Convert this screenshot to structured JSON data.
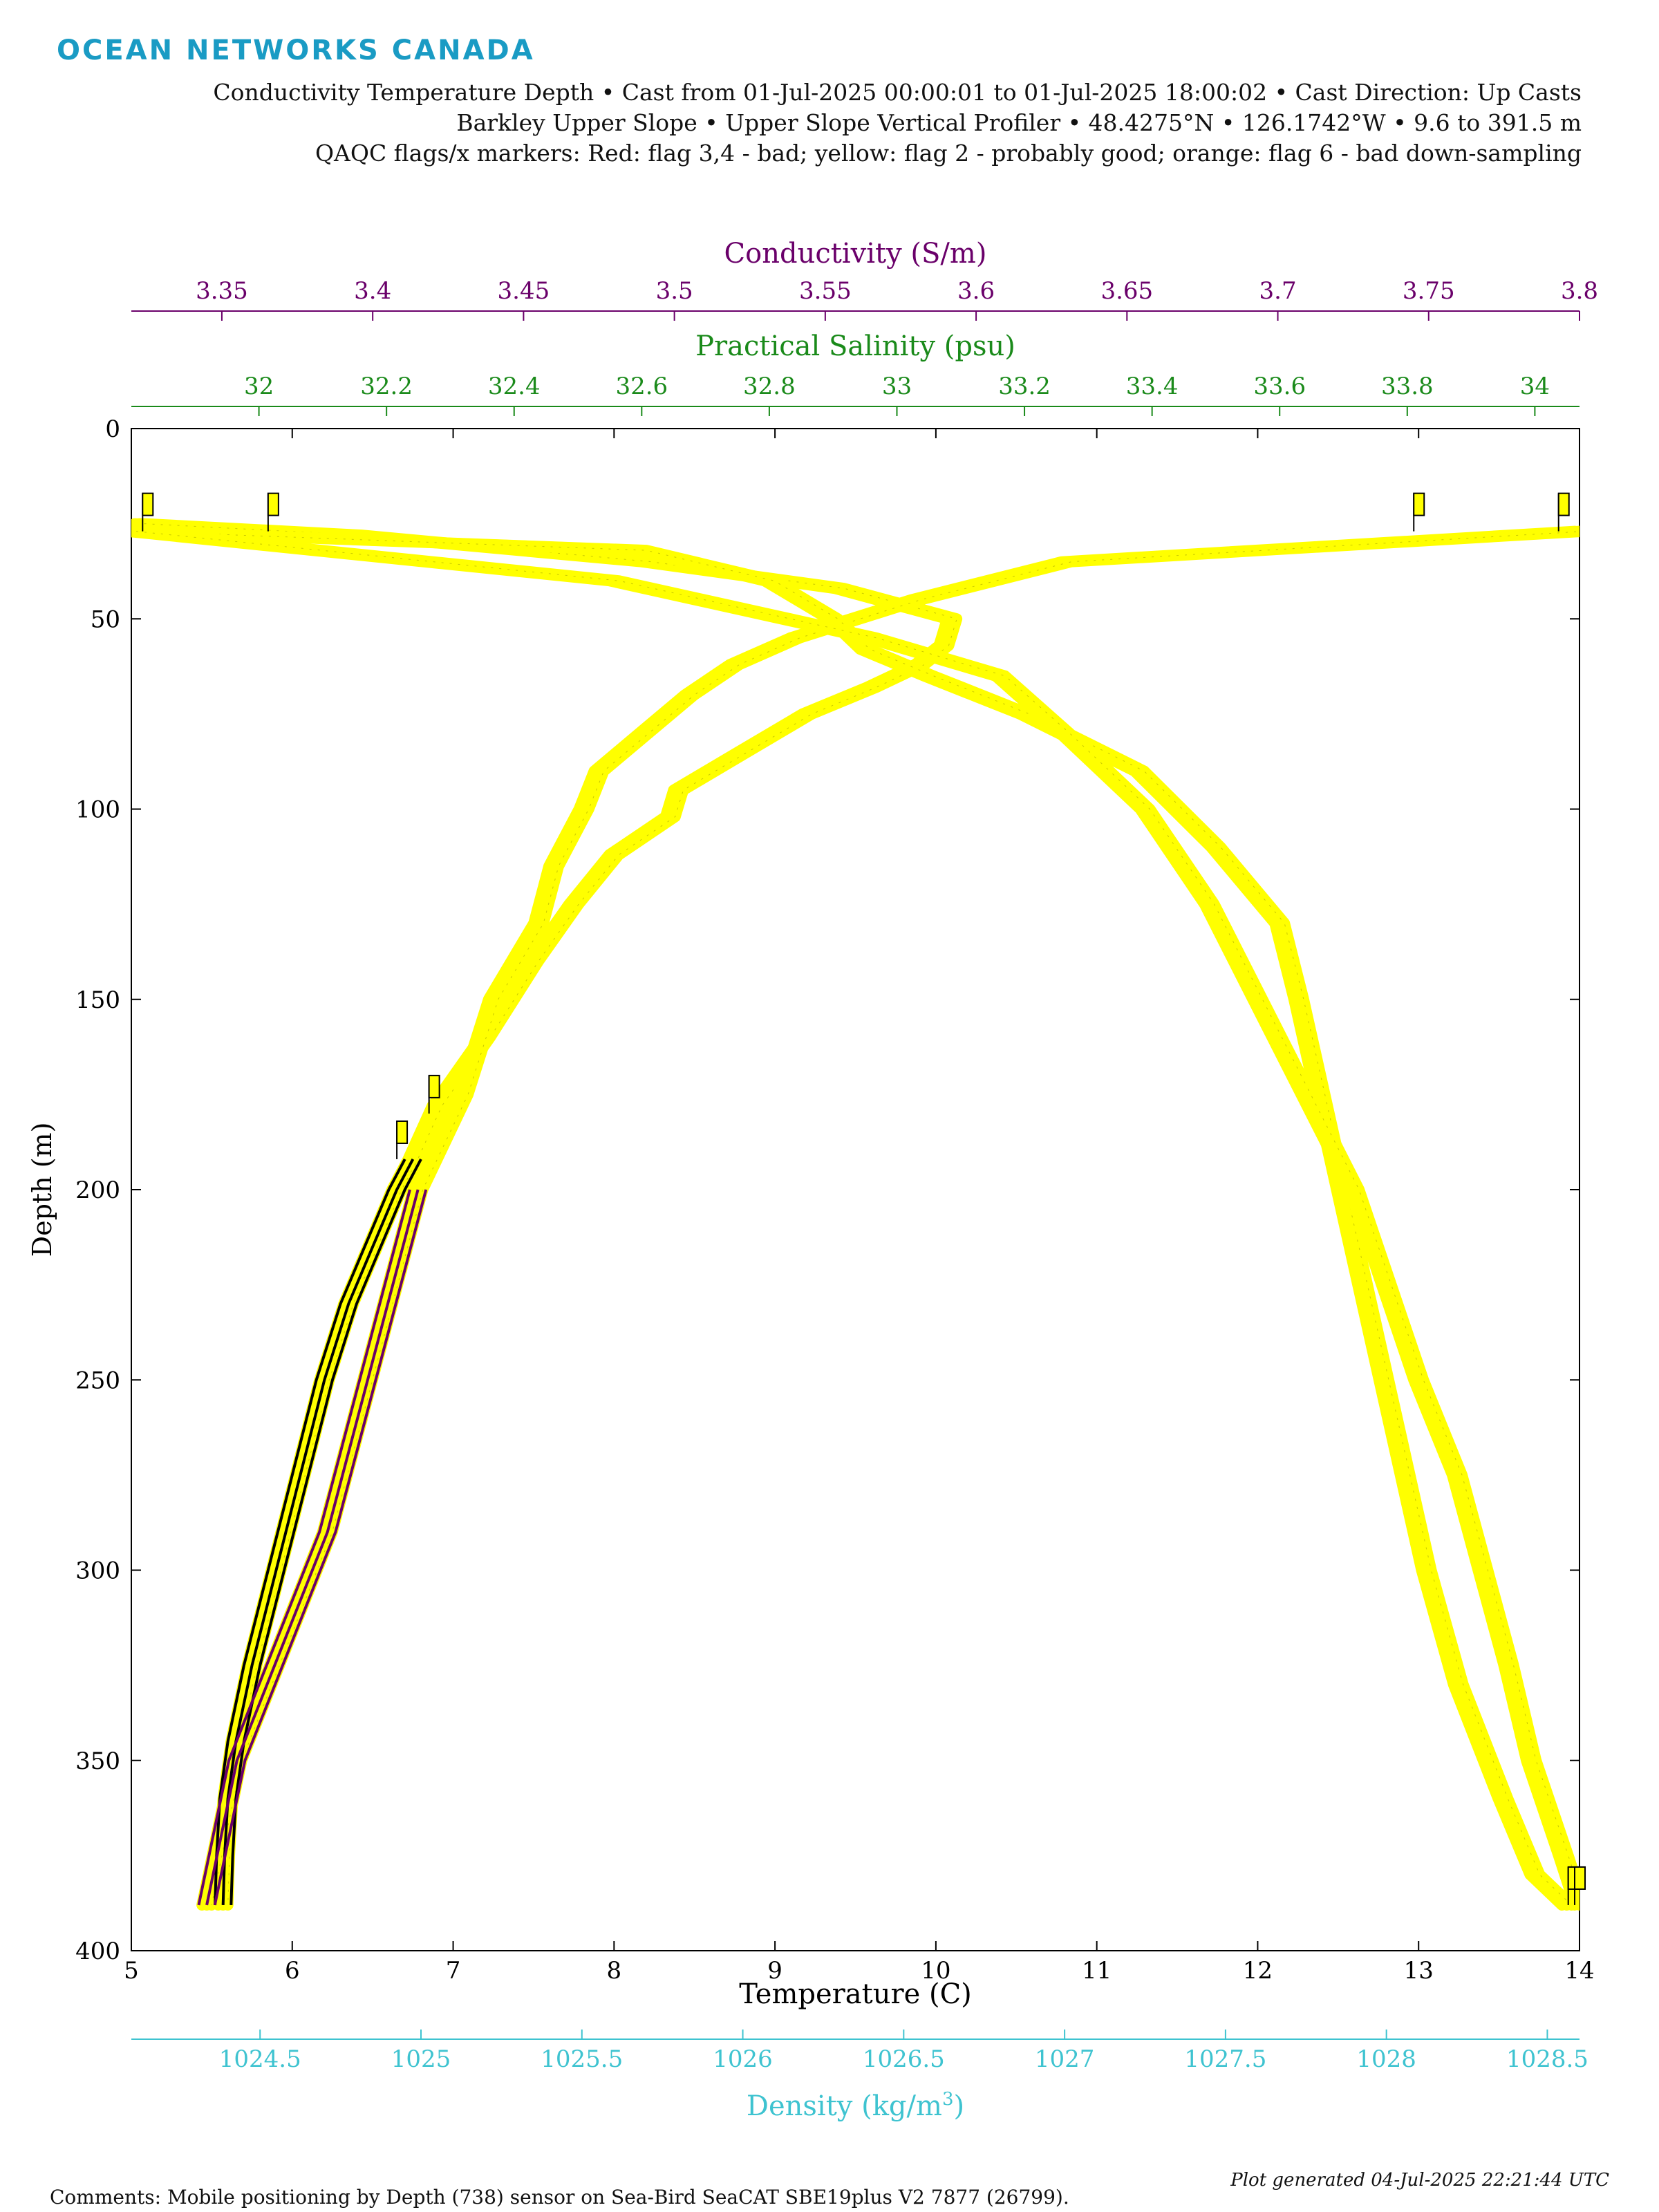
{
  "header": {
    "brand": "OCEAN NETWORKS CANADA",
    "line1": "Conductivity Temperature Depth • Cast from 01-Jul-2025 00:00:01 to 01-Jul-2025 18:00:02 • Cast Direction: Up Casts",
    "line2": "Barkley Upper Slope • Upper Slope Vertical Profiler • 48.4275°N • 126.1742°W • 9.6 to 391.5 m",
    "line3": "QAQC flags/x markers: Red: flag 3,4 - bad; yellow: flag 2 - probably good; orange: flag 6 - bad down-sampling"
  },
  "footer": {
    "comments": "Comments: Mobile positioning by Depth (738) sensor on Sea-Bird SeaCAT SBE19plus V2 7877 (26799).",
    "generated": "Plot generated 04-Jul-2025 22:21:44 UTC"
  },
  "colors": {
    "conductivity": "#6a006a",
    "salinity": "#1a8a1a",
    "density": "#3ec3d0",
    "temperature": "#000000",
    "flag_yellow": "#ffff00"
  },
  "chart_data": {
    "type": "line",
    "y_axis": {
      "label": "Depth (m)",
      "range": [
        0,
        400
      ],
      "reversed": true,
      "ticks": [
        "0",
        "50",
        "100",
        "150",
        "200",
        "250",
        "300",
        "350",
        "400"
      ]
    },
    "axes": {
      "temperature": {
        "label": "Temperature (C)",
        "range": [
          5,
          14
        ],
        "ticks": [
          "5",
          "6",
          "7",
          "8",
          "9",
          "10",
          "11",
          "12",
          "13",
          "14"
        ]
      },
      "conductivity": {
        "label": "Conductivity (S/m)",
        "range": [
          3.32,
          3.8
        ],
        "ticks": [
          "3.35",
          "3.4",
          "3.45",
          "3.5",
          "3.55",
          "3.6",
          "3.65",
          "3.7",
          "3.75",
          "3.8"
        ]
      },
      "salinity": {
        "label": "Practical Salinity (psu)",
        "range": [
          31.8,
          34.07
        ],
        "ticks": [
          "32",
          "32.2",
          "32.4",
          "32.6",
          "32.8",
          "33",
          "33.2",
          "33.4",
          "33.6",
          "33.8",
          "34"
        ]
      },
      "density": {
        "label": "Density (kg/m3)",
        "range": [
          1024.1,
          1028.6
        ],
        "ticks": [
          "1024.5",
          "1025",
          "1025.5",
          "1026",
          "1026.5",
          "1027",
          "1027.5",
          "1028",
          "1028.5"
        ]
      }
    },
    "series": [
      {
        "axis": "temperature",
        "depth": [
          25,
          28,
          35,
          42,
          50,
          57,
          62,
          68,
          75,
          85,
          95,
          102,
          112,
          125,
          140,
          160,
          178,
          192,
          200,
          215,
          230,
          250,
          275,
          300,
          325,
          345,
          360,
          375,
          388
        ],
        "values": [
          5.05,
          6.4,
          8.2,
          9.4,
          10.1,
          10.05,
          9.9,
          9.6,
          9.2,
          8.8,
          8.4,
          8.35,
          8.0,
          7.75,
          7.5,
          7.2,
          6.9,
          6.75,
          6.65,
          6.5,
          6.35,
          6.2,
          6.05,
          5.9,
          5.75,
          5.65,
          5.6,
          5.58,
          5.57
        ]
      },
      {
        "axis": "conductivity",
        "depth": [
          27,
          35,
          45,
          55,
          62,
          70,
          80,
          90,
          100,
          115,
          130,
          150,
          175,
          200,
          230,
          260,
          290,
          320,
          350,
          388
        ],
        "values": [
          3.8,
          3.63,
          3.58,
          3.54,
          3.52,
          3.505,
          3.49,
          3.475,
          3.47,
          3.46,
          3.455,
          3.44,
          3.43,
          3.415,
          3.405,
          3.395,
          3.385,
          3.37,
          3.355,
          3.345
        ]
      },
      {
        "axis": "salinity",
        "depth": [
          27,
          32,
          40,
          50,
          58,
          65,
          75,
          90,
          110,
          130,
          150,
          180,
          210,
          240,
          270,
          300,
          330,
          360,
          380,
          388
        ],
        "values": [
          31.8,
          32.6,
          32.8,
          32.9,
          32.95,
          33.05,
          33.2,
          33.38,
          33.5,
          33.6,
          33.63,
          33.67,
          33.71,
          33.75,
          33.79,
          33.83,
          33.88,
          33.95,
          34.0,
          34.05
        ]
      },
      {
        "axis": "density",
        "depth": [
          27,
          40,
          55,
          65,
          80,
          100,
          125,
          150,
          175,
          200,
          225,
          250,
          275,
          300,
          325,
          350,
          375,
          388
        ],
        "values": [
          1024.1,
          1025.6,
          1026.4,
          1026.8,
          1027.0,
          1027.25,
          1027.45,
          1027.6,
          1027.75,
          1027.9,
          1028.0,
          1028.1,
          1028.22,
          1028.3,
          1028.38,
          1028.45,
          1028.55,
          1028.6
        ]
      }
    ],
    "flags": [
      {
        "axis": "temperature",
        "x": 5.07,
        "depth": 27
      },
      {
        "axis": "temperature",
        "x": 5.85,
        "depth": 27
      },
      {
        "axis": "temperature",
        "x": 12.97,
        "depth": 27
      },
      {
        "axis": "temperature",
        "x": 13.87,
        "depth": 27
      },
      {
        "axis": "temperature",
        "x": 6.85,
        "depth": 180
      },
      {
        "axis": "temperature",
        "x": 6.65,
        "depth": 192
      },
      {
        "axis": "temperature",
        "x": 13.93,
        "depth": 388
      },
      {
        "axis": "temperature",
        "x": 13.97,
        "depth": 388
      }
    ]
  }
}
